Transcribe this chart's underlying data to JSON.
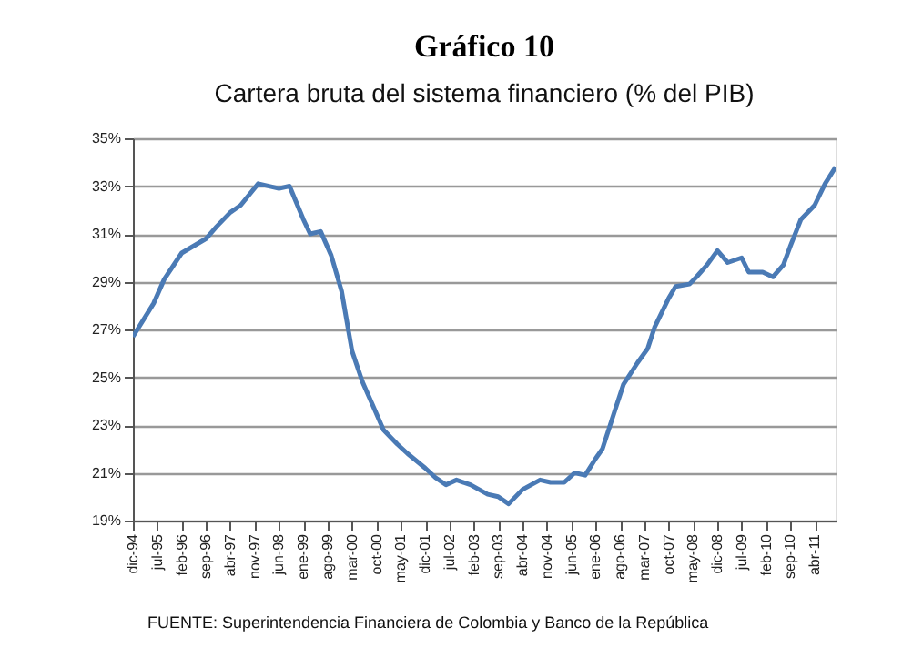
{
  "chart_data": {
    "type": "line",
    "title": "Gráfico 10",
    "subtitle": "Cartera bruta del sistema financiero (% del PIB)",
    "annotations": [
      "FUENTE: Superintendencia Financiera de Colombia y Banco de la República"
    ],
    "x": [
      "1994-12",
      "1995-06",
      "1995-09",
      "1996-02",
      "1996-09",
      "1996-12",
      "1997-04",
      "1997-07",
      "1997-12",
      "1998-06",
      "1998-09",
      "1999-01",
      "1999-03",
      "1999-06",
      "1999-09",
      "1999-12",
      "2000-03",
      "2000-06",
      "2000-09",
      "2000-12",
      "2001-04",
      "2001-07",
      "2001-12",
      "2002-03",
      "2002-06",
      "2002-09",
      "2003-01",
      "2003-06",
      "2003-09",
      "2003-12",
      "2004-04",
      "2004-09",
      "2004-12",
      "2005-04",
      "2005-07",
      "2005-10",
      "2006-01",
      "2006-03",
      "2006-07",
      "2006-09",
      "2007-01",
      "2007-04",
      "2007-06",
      "2007-10",
      "2007-12",
      "2008-04",
      "2008-06",
      "2008-09",
      "2008-12",
      "2009-03",
      "2009-07",
      "2009-09",
      "2010-01",
      "2010-04",
      "2010-07",
      "2010-09",
      "2010-12",
      "2011-04",
      "2011-07",
      "2011-10"
    ],
    "series": [
      {
        "color": "#4a7ab5",
        "values": [
          26.7,
          28.1,
          29.1,
          30.2,
          30.8,
          31.3,
          31.9,
          32.2,
          33.1,
          32.9,
          33.0,
          31.6,
          31.0,
          31.1,
          30.1,
          28.6,
          26.1,
          24.8,
          23.8,
          22.8,
          22.2,
          21.8,
          21.2,
          20.8,
          20.5,
          20.7,
          20.5,
          20.1,
          20.0,
          19.7,
          20.3,
          20.7,
          20.6,
          20.6,
          21.0,
          20.9,
          21.6,
          22.0,
          23.8,
          24.7,
          25.6,
          26.2,
          27.1,
          28.3,
          28.8,
          28.9,
          29.2,
          29.7,
          30.3,
          29.8,
          30.0,
          29.4,
          29.4,
          29.2,
          29.7,
          30.5,
          31.6,
          32.2,
          33.1,
          33.8
        ]
      }
    ],
    "xlim": [
      "1994-12",
      "2011-10"
    ],
    "xticks": [
      {
        "value": "1994-12",
        "label": "dic-94"
      },
      {
        "value": "1995-07",
        "label": "jul-95"
      },
      {
        "value": "1996-02",
        "label": "feb-96"
      },
      {
        "value": "1996-09",
        "label": "sep-96"
      },
      {
        "value": "1997-04",
        "label": "abr-97"
      },
      {
        "value": "1997-11",
        "label": "nov-97"
      },
      {
        "value": "1998-06",
        "label": "jun-98"
      },
      {
        "value": "1999-01",
        "label": "ene-99"
      },
      {
        "value": "1999-08",
        "label": "ago-99"
      },
      {
        "value": "2000-03",
        "label": "mar-00"
      },
      {
        "value": "2000-10",
        "label": "oct-00"
      },
      {
        "value": "2001-05",
        "label": "may-01"
      },
      {
        "value": "2001-12",
        "label": "dic-01"
      },
      {
        "value": "2002-07",
        "label": "jul-02"
      },
      {
        "value": "2003-02",
        "label": "feb-03"
      },
      {
        "value": "2003-09",
        "label": "sep-03"
      },
      {
        "value": "2004-04",
        "label": "abr-04"
      },
      {
        "value": "2004-11",
        "label": "nov-04"
      },
      {
        "value": "2005-06",
        "label": "jun-05"
      },
      {
        "value": "2006-01",
        "label": "ene-06"
      },
      {
        "value": "2006-08",
        "label": "ago-06"
      },
      {
        "value": "2007-03",
        "label": "mar-07"
      },
      {
        "value": "2007-10",
        "label": "oct-07"
      },
      {
        "value": "2008-05",
        "label": "may-08"
      },
      {
        "value": "2008-12",
        "label": "dic-08"
      },
      {
        "value": "2009-07",
        "label": "jul-09"
      },
      {
        "value": "2010-02",
        "label": "feb-10"
      },
      {
        "value": "2010-09",
        "label": "sep-10"
      },
      {
        "value": "2011-04",
        "label": "abr-11"
      }
    ],
    "ylim": [
      19,
      35
    ],
    "yticks": [
      {
        "value": 19,
        "label": "19%"
      },
      {
        "value": 21,
        "label": "21%"
      },
      {
        "value": 23,
        "label": "23%"
      },
      {
        "value": 25,
        "label": "25%"
      },
      {
        "value": 27,
        "label": "27%"
      },
      {
        "value": 29,
        "label": "29%"
      },
      {
        "value": 31,
        "label": "31%"
      },
      {
        "value": 33,
        "label": "33%"
      },
      {
        "value": 35,
        "label": "35%"
      }
    ],
    "grid": "y",
    "marker": "none",
    "line_style": "solid"
  }
}
